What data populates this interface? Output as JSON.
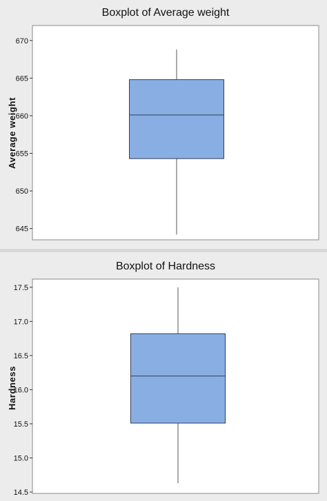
{
  "chart_data": [
    {
      "type": "boxplot",
      "title": "Boxplot of Average weight",
      "xlabel": "",
      "ylabel": "Average weight",
      "ylim": [
        643.5,
        672
      ],
      "yticks": [
        645,
        650,
        655,
        660,
        665,
        670
      ],
      "tick_labels": [
        "645",
        "650",
        "655",
        "660",
        "665",
        "670"
      ],
      "grid": false,
      "box": {
        "min": 644.2,
        "q1": 654.3,
        "median": 660.1,
        "q3": 664.8,
        "max": 668.8
      },
      "box_color": "#89aee3"
    },
    {
      "type": "boxplot",
      "title": "Boxplot of Hardness",
      "xlabel": "",
      "ylabel": "Hardness",
      "ylim": [
        14.48,
        17.62
      ],
      "yticks": [
        14.5,
        15.0,
        15.5,
        16.0,
        16.5,
        17.0,
        17.5
      ],
      "tick_labels": [
        "14.5",
        "15.0",
        "15.5",
        "16.0",
        "16.5",
        "17.0",
        "17.5"
      ],
      "grid": false,
      "box": {
        "min": 14.63,
        "q1": 15.51,
        "median": 16.2,
        "q3": 16.82,
        "max": 17.5
      },
      "box_color": "#89aee3"
    }
  ]
}
